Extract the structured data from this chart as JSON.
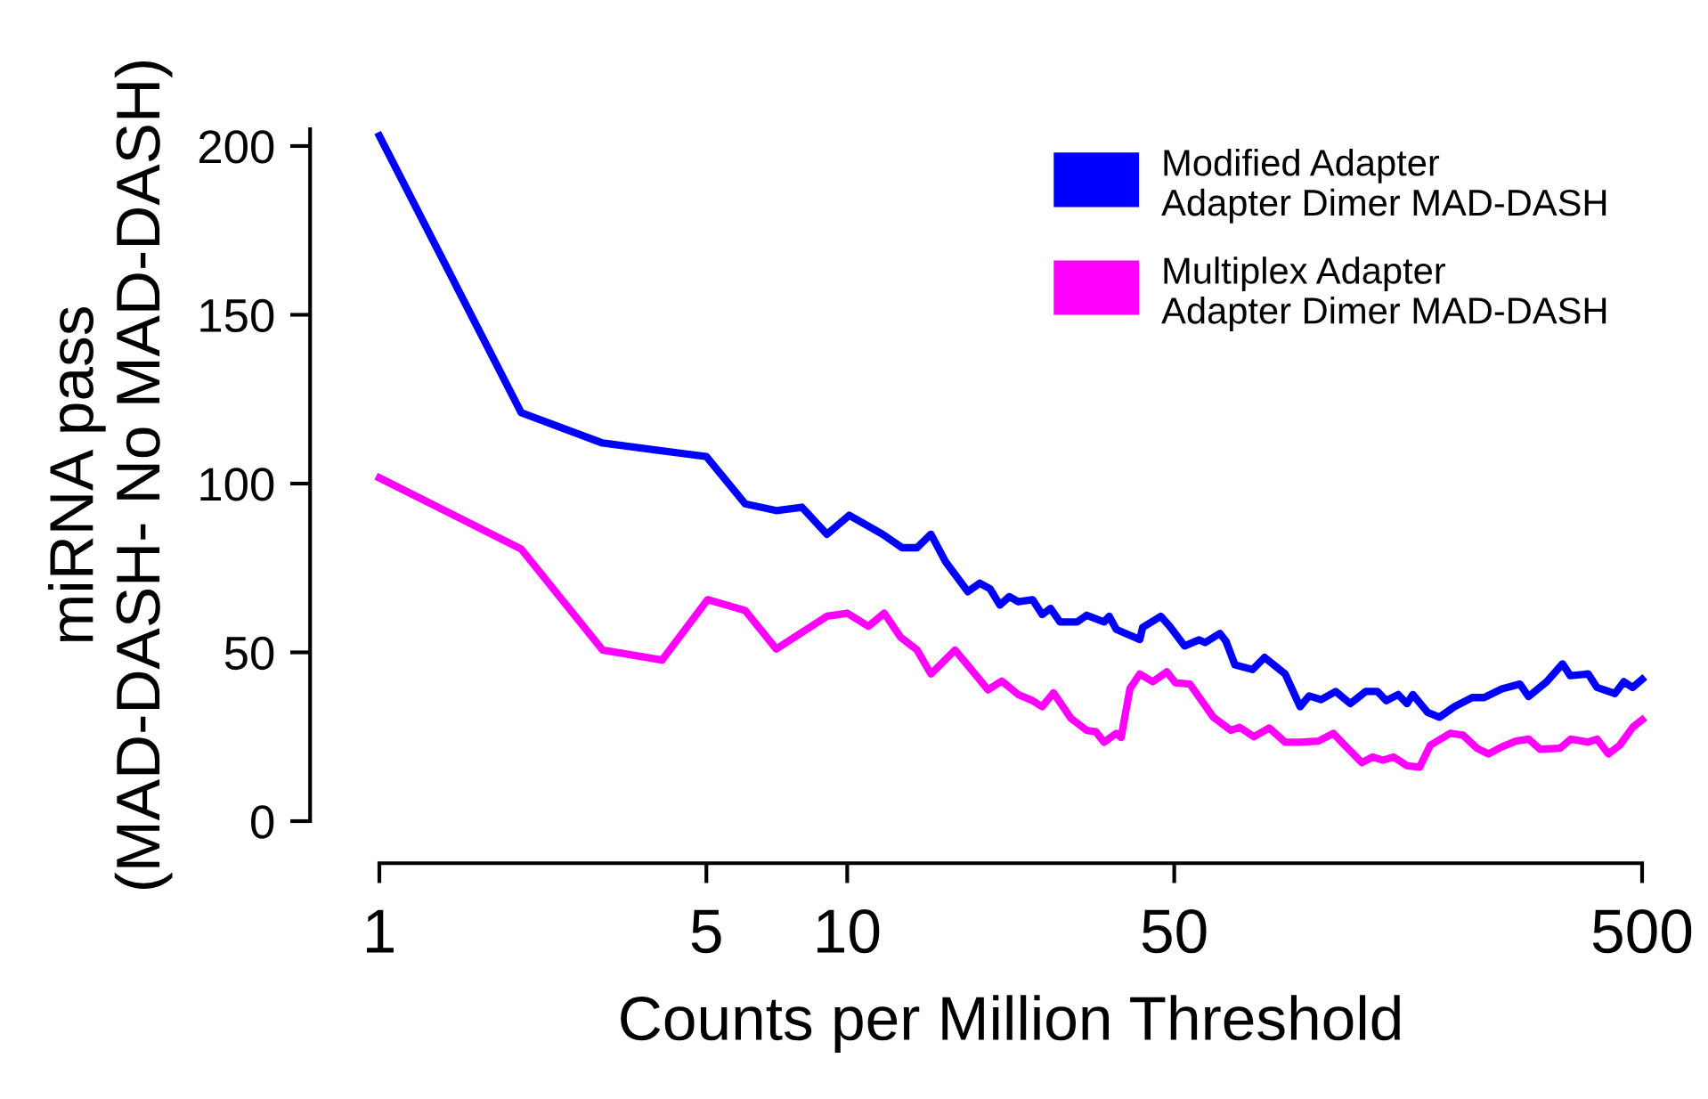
{
  "chart_data": {
    "type": "line",
    "xlabel": "Counts per Million Threshold",
    "ylabel": "miRNA pass\n(MAD-DASH- No MAD-DASH)",
    "log": "x",
    "xlim": [
      1,
      500
    ],
    "xticks": [
      1,
      5,
      10,
      50,
      500
    ],
    "ylim": [
      0,
      205
    ],
    "yticks": [
      0,
      50,
      100,
      150,
      200
    ],
    "grid": false,
    "legend": "top right",
    "marker": "none",
    "line_style": "solid",
    "series": [
      {
        "name": "Modified Adapter\nAdapter Dimer MAD-DASH",
        "color": "#0000ff",
        "x": [
          1,
          2.01,
          3.0,
          5.0,
          6.05,
          7.05,
          8.0,
          9.05,
          10.1,
          11.9,
          13.1,
          14.1,
          15.1,
          16.2,
          18.1,
          19.2,
          20.2,
          21.2,
          22.2,
          23.2,
          24.9,
          26.1,
          27.2,
          28.5,
          31.0,
          32.5,
          35.4,
          36.3,
          37.6,
          42.2,
          42.8,
          46.8,
          48.9,
          52.6,
          56.5,
          58.2,
          62.6,
          64.5,
          67.4,
          73.5,
          78,
          86.3,
          92.9,
          97.1,
          102.9,
          110.7,
          119,
          128.2,
          135.9,
          141.9,
          150.5,
          157.2,
          161.8,
          174,
          184.5,
          198.5,
          216.7,
          229.8,
          250.7,
          274,
          286,
          312.6,
          338,
          351,
          383.5,
          400.5,
          437.5,
          457,
          477.5,
          500
        ],
        "values": [
          203,
          121,
          112,
          108,
          94,
          92,
          93,
          85,
          90.6,
          85,
          81,
          81,
          85,
          77,
          68,
          70.5,
          68.8,
          64,
          66.5,
          65,
          65.6,
          61.2,
          63,
          59,
          59,
          61,
          59,
          60.7,
          56.8,
          53.8,
          57.4,
          60.7,
          57.7,
          51.9,
          53.7,
          52.9,
          55.6,
          53.3,
          46.3,
          44.9,
          48.5,
          43.6,
          33.9,
          37.1,
          36,
          38.4,
          34.8,
          38.4,
          38.4,
          35.7,
          37.5,
          34.8,
          37.5,
          32.2,
          30.8,
          33.9,
          36.6,
          36.6,
          39.2,
          40.6,
          36.9,
          41.3,
          46.6,
          43.1,
          43.6,
          39.6,
          37.8,
          41.3,
          39.6,
          42
        ]
      },
      {
        "name": "Multiplex Adapter\nAdapter Dimer MAD-DASH",
        "color": "#ff00ff",
        "x": [
          1,
          2.01,
          3.0,
          4.02,
          5.03,
          6.05,
          7.05,
          9.05,
          10.0,
          11.1,
          12.0,
          13.0,
          14.1,
          15.1,
          17.0,
          20.0,
          21.4,
          23.2,
          24.9,
          26.1,
          27.6,
          30.1,
          32.5,
          34,
          35.4,
          37.6,
          38.5,
          40.2,
          42.2,
          45,
          48.2,
          50.3,
          54,
          57.2,
          60.6,
          66.1,
          69,
          74,
          79.8,
          86.3,
          92.9,
          101.7,
          109.4,
          114.5,
          125.9,
          132.7,
          139.7,
          147.2,
          157.2,
          167.3,
          176.3,
          194.3,
          207,
          221.8,
          234.5,
          250.7,
          268.8,
          286,
          302.8,
          334,
          352,
          383.5,
          400.5,
          423.6,
          448,
          477.5,
          500
        ],
        "values": [
          101.7,
          80.6,
          50.7,
          47.7,
          65.6,
          62.4,
          51,
          60.7,
          61.6,
          57.7,
          61.6,
          54.5,
          50.7,
          43.6,
          50.7,
          38.9,
          41.5,
          37.5,
          35.7,
          33.9,
          38,
          30.4,
          26.9,
          26.5,
          23.4,
          26,
          24.8,
          39.2,
          43.6,
          41.3,
          44.2,
          41,
          40.6,
          35.7,
          30.8,
          26.9,
          27.8,
          25,
          27.6,
          23.4,
          23.4,
          23.7,
          26,
          23.1,
          17.3,
          19,
          18.1,
          19,
          16.4,
          16,
          22.5,
          26,
          25.5,
          21.6,
          19.9,
          22,
          23.7,
          24.3,
          21.3,
          21.6,
          24.3,
          23.4,
          24.3,
          19.9,
          22.5,
          27.8,
          30
        ]
      }
    ]
  }
}
